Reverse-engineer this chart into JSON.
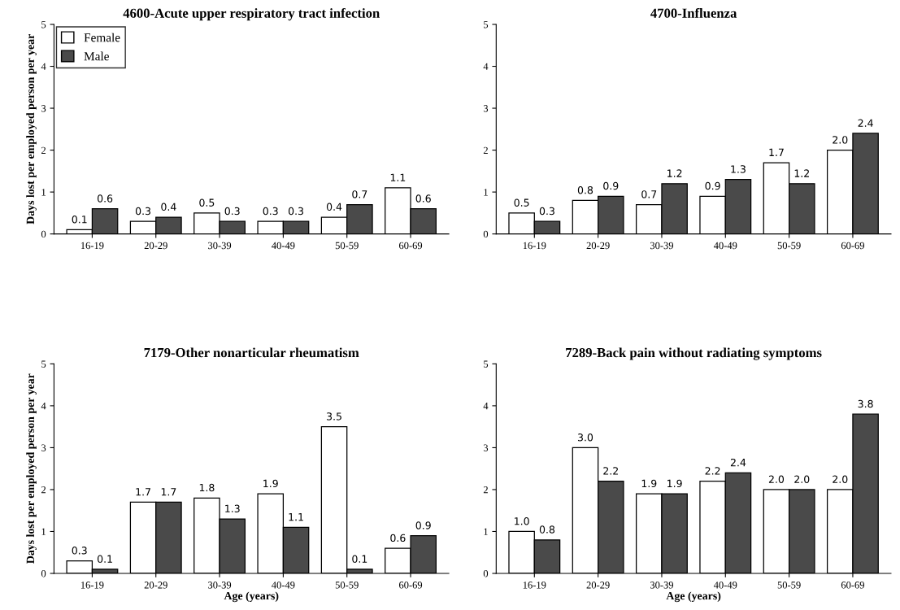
{
  "chart_data": [
    {
      "type": "bar",
      "title": "4600-Acute upper respiratory tract infection",
      "ylabel": "Days lost per employed person per year",
      "categories": [
        "16-19",
        "20-29",
        "30-39",
        "40-49",
        "50-59",
        "60-69"
      ],
      "series": [
        {
          "name": "Female",
          "color": "#ffffff",
          "values": [
            0.1,
            0.3,
            0.5,
            0.3,
            0.4,
            1.1
          ],
          "value_labels": [
            "0.1",
            "0.3",
            "0.5",
            "0.3",
            "0.4",
            "1.1"
          ]
        },
        {
          "name": "Male",
          "color": "#4a4a4a",
          "values": [
            0.6,
            0.4,
            0.3,
            0.3,
            0.7,
            0.6
          ],
          "value_labels": [
            "0.6",
            "0.4",
            "0.3",
            "0.3",
            "0.7",
            "0.6"
          ]
        }
      ],
      "ylim": [
        0,
        5
      ],
      "yticks": [
        0,
        1,
        2,
        3,
        4,
        5
      ],
      "legend": "top left"
    },
    {
      "type": "bar",
      "title": "4700-Influenza",
      "categories": [
        "16-19",
        "20-29",
        "30-39",
        "40-49",
        "50-59",
        "60-69"
      ],
      "series": [
        {
          "color": "#ffffff",
          "values": [
            0.5,
            0.8,
            0.7,
            0.9,
            1.7,
            2.0
          ],
          "value_labels": [
            "0.5",
            "0.8",
            "0.7",
            "0.9",
            "1.7",
            "2.0"
          ]
        },
        {
          "color": "#4a4a4a",
          "values": [
            0.3,
            0.9,
            1.2,
            1.3,
            1.2,
            2.4
          ],
          "value_labels": [
            "0.3",
            "0.9",
            "1.2",
            "1.3",
            "1.2",
            "2.4"
          ]
        }
      ],
      "ylim": [
        0,
        5
      ],
      "yticks": [
        0,
        1,
        2,
        3,
        4,
        5
      ]
    },
    {
      "type": "bar",
      "title": "7179-Other nonarticular rheumatism",
      "ylabel": "Days lost per employed person per year",
      "xlabel": "Age (years)",
      "categories": [
        "16-19",
        "20-29",
        "30-39",
        "40-49",
        "50-59",
        "60-69"
      ],
      "series": [
        {
          "color": "#ffffff",
          "values": [
            0.3,
            1.7,
            1.8,
            1.9,
            3.5,
            0.6
          ],
          "value_labels": [
            "0.3",
            "1.7",
            "1.8",
            "1.9",
            "3.5",
            "0.6"
          ]
        },
        {
          "color": "#4a4a4a",
          "values": [
            0.1,
            1.7,
            1.3,
            1.1,
            0.1,
            0.9
          ],
          "value_labels": [
            "0.1",
            "1.7",
            "1.3",
            "1.1",
            "0.1",
            "0.9"
          ]
        }
      ],
      "ylim": [
        0,
        5
      ],
      "yticks": [
        0,
        1,
        2,
        3,
        4,
        5
      ]
    },
    {
      "type": "bar",
      "title": "7289-Back pain without radiating symptoms",
      "xlabel": "Age (years)",
      "categories": [
        "16-19",
        "20-29",
        "30-39",
        "40-49",
        "50-59",
        "60-69"
      ],
      "series": [
        {
          "color": "#ffffff",
          "values": [
            1.0,
            3.0,
            1.9,
            2.2,
            2.0,
            2.0
          ],
          "value_labels": [
            "1.0",
            "3.0",
            "1.9",
            "2.2",
            "2.0",
            "2.0"
          ]
        },
        {
          "color": "#4a4a4a",
          "values": [
            0.8,
            2.2,
            1.9,
            2.4,
            2.0,
            3.8
          ],
          "value_labels": [
            "0.8",
            "2.2",
            "1.9",
            "2.4",
            "2.0",
            "3.8"
          ]
        }
      ],
      "ylim": [
        0,
        5
      ],
      "yticks": [
        0,
        1,
        2,
        3,
        4,
        5
      ]
    }
  ]
}
